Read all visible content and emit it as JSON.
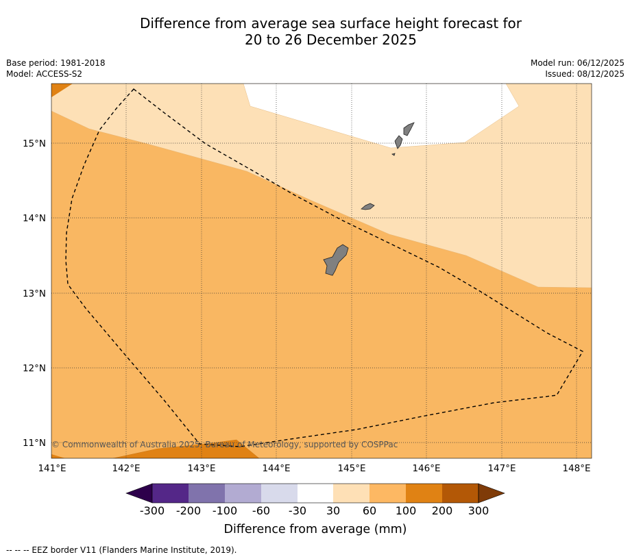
{
  "title": {
    "line1": "Difference from average sea surface height forecast for",
    "line2": "20 to 26 December 2025"
  },
  "meta": {
    "base_period": "Base period: 1981-2018",
    "model": "Model: ACCESS-S2",
    "model_run": "Model run: 06/12/2025",
    "issued": "Issued: 08/12/2025"
  },
  "map": {
    "lon_range": [
      141.0,
      148.2
    ],
    "lat_range": [
      10.8,
      15.8
    ],
    "lon_ticks": [
      "141°E",
      "142°E",
      "143°E",
      "144°E",
      "145°E",
      "146°E",
      "147°E",
      "148°E"
    ],
    "lat_ticks": [
      "15°N",
      "14°N",
      "13°N",
      "12°N",
      "11°N"
    ],
    "copyright": "© Commonwealth of Australia 2025, Bureau of Meteorology, supported by COSPPac",
    "colors": {
      "land": "#808080",
      "band_30_60": "#fde0b6",
      "band_60_100": "#f9b762",
      "band_100_200": "#e08214",
      "border": "#000000"
    }
  },
  "colorbar": {
    "labels": [
      "-300",
      "-200",
      "-100",
      "-60",
      "-30",
      "30",
      "60",
      "100",
      "200",
      "300"
    ],
    "colors": [
      "#542788",
      "#8073ac",
      "#b2abd2",
      "#d8daeb",
      "#ffffff",
      "#fee0b6",
      "#fdb863",
      "#e08214",
      "#b35806"
    ],
    "under_color": "#2d004b",
    "over_color": "#7f3b08",
    "title": "Difference from average (mm)"
  },
  "footnote": "--  --  -- EEZ border V11 (Flanders Marine Institute, 2019)."
}
